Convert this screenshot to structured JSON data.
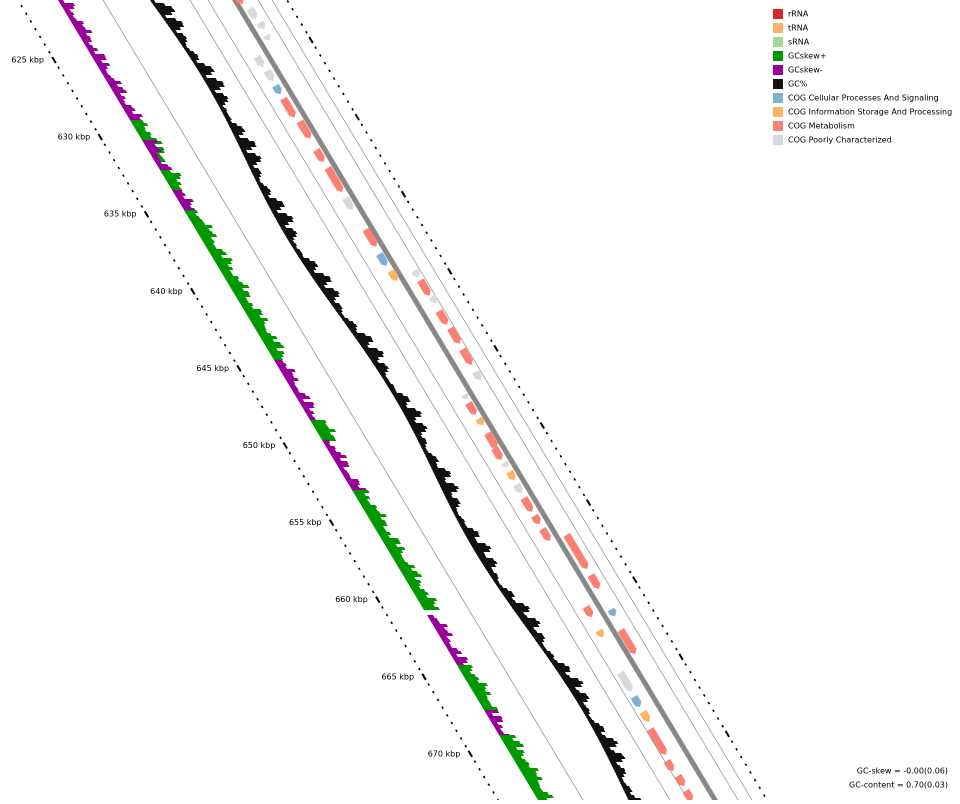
{
  "legend": [
    {
      "label": "rRNA",
      "color": "#d62728"
    },
    {
      "label": "tRNA",
      "color": "#f9b26b"
    },
    {
      "label": "sRNA",
      "color": "#a6d89b"
    },
    {
      "label": "GCskew+",
      "color": "#009900"
    },
    {
      "label": "GCskew-",
      "color": "#990099"
    },
    {
      "label": "GC%",
      "color": "#111111"
    },
    {
      "label": "COG Cellular Processes And Signaling",
      "color": "#80b1d3"
    },
    {
      "label": "COG Information Storage And Processing",
      "color": "#fdb462"
    },
    {
      "label": "COG Metabolism",
      "color": "#fb8072"
    },
    {
      "label": "COG Poorly Characterized",
      "color": "#d9d9d9"
    }
  ],
  "scale_labels": [
    "625 kbp",
    "630 kbp",
    "635 kbp",
    "640 kbp",
    "645 kbp",
    "650 kbp",
    "655 kbp",
    "660 kbp",
    "665 kbp",
    "670 kbp"
  ],
  "stats": [
    "GC-skew = -0.00(0.06)",
    "GC-content = 0.70(0.03)"
  ]
}
